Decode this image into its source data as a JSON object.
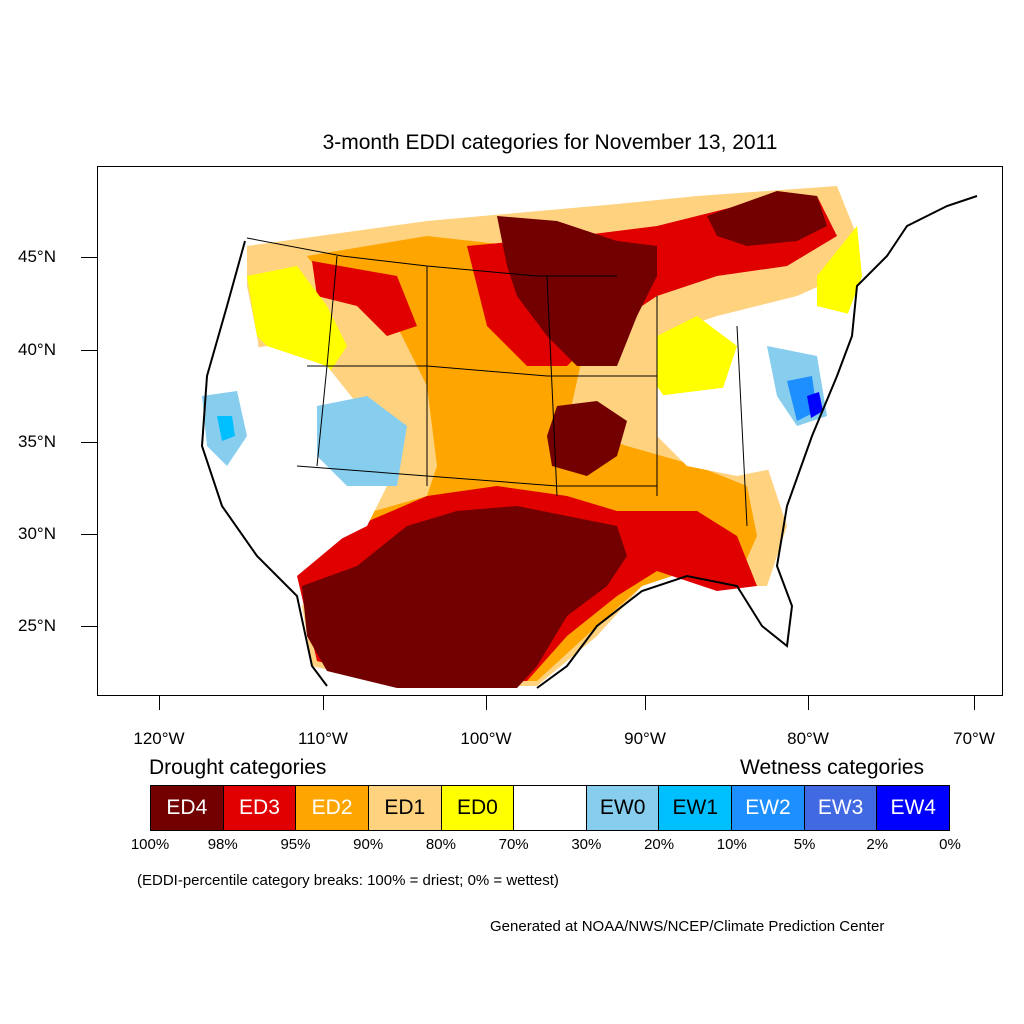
{
  "title": "3-month EDDI categories for November 13, 2011",
  "axes": {
    "lat_labels": [
      "45°N",
      "40°N",
      "35°N",
      "30°N",
      "25°N"
    ],
    "lon_labels": [
      "120°W",
      "110°W",
      "100°W",
      "90°W",
      "80°W",
      "70°W"
    ]
  },
  "legend": {
    "drought_heading": "Drought categories",
    "wetness_heading": "Wetness categories",
    "categories": [
      {
        "label": "ED4",
        "color": "#720000",
        "text_color": "#ffffff"
      },
      {
        "label": "ED3",
        "color": "#e00000",
        "text_color": "#ffffff"
      },
      {
        "label": "ED2",
        "color": "#ffa500",
        "text_color": "#ffffff"
      },
      {
        "label": "ED1",
        "color": "#ffd27f",
        "text_color": "#000000"
      },
      {
        "label": "ED0",
        "color": "#ffff00",
        "text_color": "#000000"
      },
      {
        "label": "",
        "color": "#ffffff",
        "text_color": "#000000"
      },
      {
        "label": "EW0",
        "color": "#87cdee",
        "text_color": "#000000"
      },
      {
        "label": "EW1",
        "color": "#00bfff",
        "text_color": "#000000"
      },
      {
        "label": "EW2",
        "color": "#1e8fff",
        "text_color": "#ffffff"
      },
      {
        "label": "EW3",
        "color": "#4169e1",
        "text_color": "#ffffff"
      },
      {
        "label": "EW4",
        "color": "#0000ff",
        "text_color": "#ffffff"
      }
    ],
    "breaks": [
      "100%",
      "98%",
      "95%",
      "90%",
      "80%",
      "70%",
      "30%",
      "20%",
      "10%",
      "5%",
      "2%",
      "0%"
    ],
    "note": "(EDDI-percentile category breaks: 100% = driest; 0% = wettest)"
  },
  "credit": "Generated at NOAA/NWS/NCEP/Climate Prediction Center"
}
